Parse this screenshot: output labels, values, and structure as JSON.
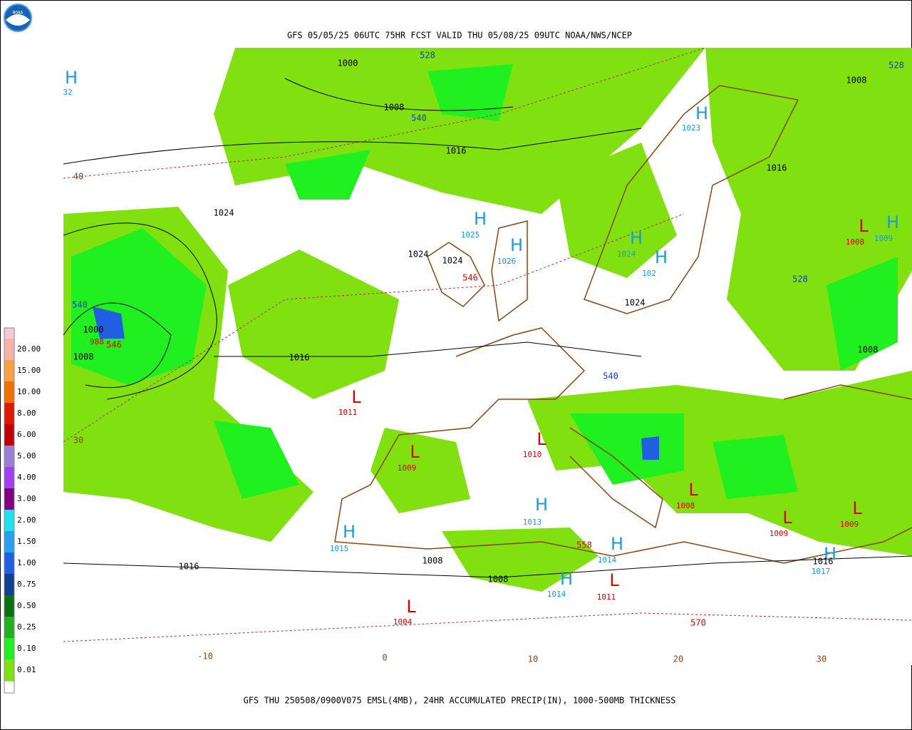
{
  "header": {
    "title": "GFS 05/05/25 06UTC 75HR FCST VALID THU 05/08/25 09UTC NOAA/NWS/NCEP",
    "logo": "NOAA"
  },
  "footer": "GFS THU 250508/0900V075 EMSL(4MB), 24HR ACCUMULATED PRECIP(IN), 1000-500MB THICKNESS",
  "legend": [
    {
      "label": "20.00",
      "color": "#f6b4a8"
    },
    {
      "label": "15.00",
      "color": "#f8a048"
    },
    {
      "label": "10.00",
      "color": "#f07000"
    },
    {
      "label": "8.00",
      "color": "#e01800"
    },
    {
      "label": "6.00",
      "color": "#c00000"
    },
    {
      "label": "5.00",
      "color": "#9880d8"
    },
    {
      "label": "4.00",
      "color": "#a040f0"
    },
    {
      "label": "3.00",
      "color": "#800080"
    },
    {
      "label": "2.00",
      "color": "#20e0f0"
    },
    {
      "label": "1.50",
      "color": "#28a0f0"
    },
    {
      "label": "1.00",
      "color": "#2060e0"
    },
    {
      "label": "0.75",
      "color": "#104090"
    },
    {
      "label": "0.50",
      "color": "#0a7010"
    },
    {
      "label": "0.25",
      "color": "#20b020"
    },
    {
      "label": "0.10",
      "color": "#20f020"
    },
    {
      "label": "0.01",
      "color": "#80e010"
    }
  ],
  "centers": [
    {
      "symbol": "H",
      "pressure": "32"
    },
    {
      "symbol": "H",
      "pressure": "1025"
    },
    {
      "symbol": "H",
      "pressure": "1026"
    },
    {
      "symbol": "H",
      "pressure": "1024"
    },
    {
      "symbol": "H",
      "pressure": "102"
    },
    {
      "symbol": "H",
      "pressure": "1023"
    },
    {
      "symbol": "H",
      "pressure": "1009"
    },
    {
      "symbol": "L",
      "pressure": "1008"
    },
    {
      "symbol": "L",
      "pressure": "1011"
    },
    {
      "symbol": "L",
      "pressure": "1010"
    },
    {
      "symbol": "L",
      "pressure": "1009"
    },
    {
      "symbol": "L",
      "pressure": "1008"
    },
    {
      "symbol": "L",
      "pressure": "1009"
    },
    {
      "symbol": "L",
      "pressure": "1009"
    },
    {
      "symbol": "H",
      "pressure": "1013"
    },
    {
      "symbol": "H",
      "pressure": "1015"
    },
    {
      "symbol": "H",
      "pressure": "1014"
    },
    {
      "symbol": "H",
      "pressure": "1014"
    },
    {
      "symbol": "L",
      "pressure": "1011"
    },
    {
      "symbol": "L",
      "pressure": "1004"
    },
    {
      "symbol": "H",
      "pressure": "1017"
    },
    {
      "pressure": "988"
    }
  ],
  "isobar_labels": [
    "1000",
    "1008",
    "1016",
    "1024",
    "1024",
    "1024",
    "1016",
    "1008",
    "1024",
    "1016",
    "1000",
    "1008",
    "1008",
    "1016",
    "1008",
    "1008",
    "1016"
  ],
  "thickness_labels": [
    {
      "text": "528",
      "color": "#1a3acc"
    },
    {
      "text": "540",
      "color": "#1a3acc"
    },
    {
      "text": "528",
      "color": "#1a3acc"
    },
    {
      "text": "528",
      "color": "#1a3acc"
    },
    {
      "text": "540",
      "color": "#1a3acc"
    },
    {
      "text": "540",
      "color": "#1a3acc"
    },
    {
      "text": "546",
      "color": "#e00000"
    },
    {
      "text": "546",
      "color": "#e00000"
    },
    {
      "text": "558",
      "color": "#e00000"
    },
    {
      "text": "570",
      "color": "#e00000"
    }
  ],
  "graticule_labels": [
    "40",
    "30",
    "-10",
    "0",
    "10",
    "20",
    "30"
  ]
}
